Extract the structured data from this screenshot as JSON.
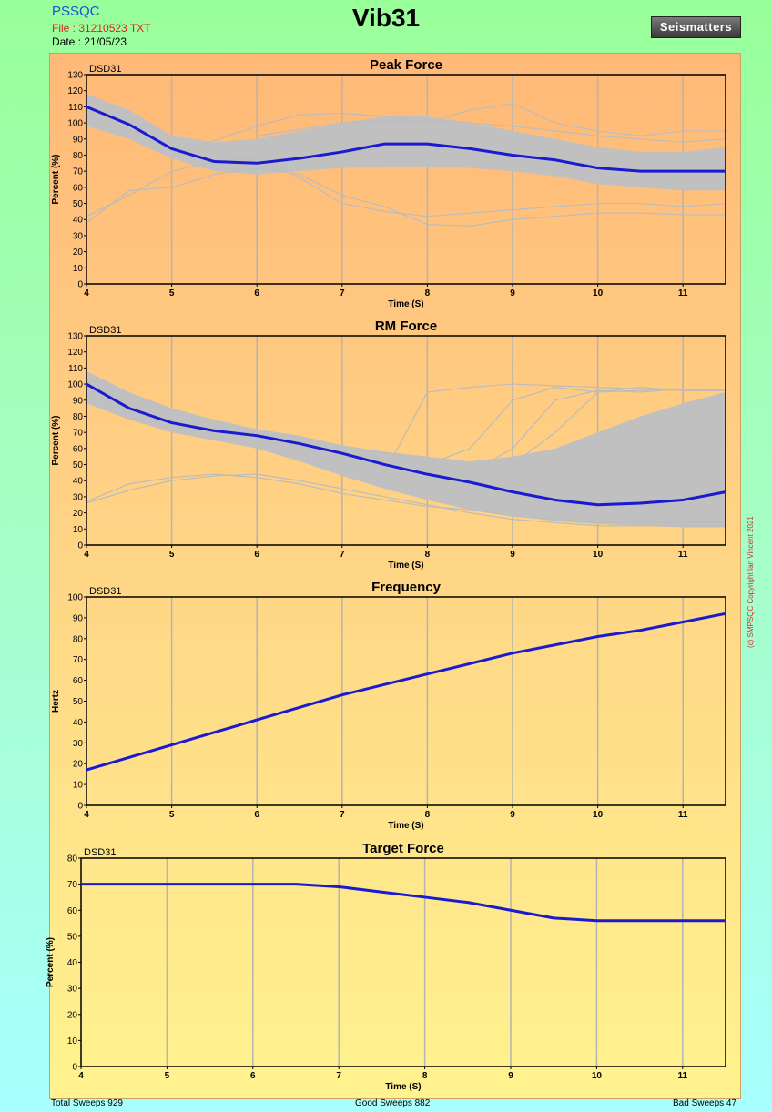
{
  "header": {
    "app_name": "PSSQC",
    "file": "File : 31210523 TXT",
    "date": "Date : 21/05/23",
    "title": "Vib31",
    "logo_text": "Seismatters"
  },
  "copyright": "(c) SMPSQC Copyright Ian Vincent 2021",
  "footer": {
    "total": "Total Sweeps 929",
    "good": "Good Sweeps 882",
    "bad": "Bad Sweeps 47"
  },
  "chart_data": [
    {
      "type": "line",
      "title": "Peak Force",
      "corner_label": "DSD31",
      "xlabel": "Time (S)",
      "ylabel": "Percent (%)",
      "xlim": [
        4,
        11.5
      ],
      "ylim": [
        0,
        130
      ],
      "xticks": [
        4,
        5,
        6,
        7,
        8,
        9,
        10,
        11
      ],
      "yticks": [
        0,
        10,
        20,
        30,
        40,
        50,
        60,
        70,
        80,
        90,
        100,
        110,
        120,
        130
      ],
      "grid": "vertical",
      "band_color": "#c0c0c0",
      "mean_color": "#1a1ad0",
      "band": {
        "x": [
          4,
          4.5,
          5,
          5.5,
          6,
          6.5,
          7,
          7.5,
          8,
          8.5,
          9,
          9.5,
          10,
          10.5,
          11,
          11.5
        ],
        "lower": [
          98,
          90,
          78,
          70,
          68,
          70,
          72,
          73,
          73,
          72,
          70,
          67,
          62,
          60,
          58,
          58
        ],
        "upper": [
          118,
          108,
          92,
          88,
          90,
          95,
          100,
          104,
          104,
          100,
          95,
          90,
          85,
          82,
          82,
          85
        ]
      },
      "spikes": [
        {
          "x": [
            4,
            4.5,
            5,
            5.5,
            6,
            6.5,
            7,
            7.5,
            8,
            8.5,
            9,
            9.5,
            10,
            10.5,
            11,
            11.5
          ],
          "y": [
            38,
            58,
            60,
            68,
            72,
            68,
            55,
            48,
            37,
            36,
            40,
            42,
            44,
            44,
            43,
            43
          ]
        },
        {
          "x": [
            4,
            4.5,
            5,
            5.5,
            6,
            6.5,
            7,
            7.5,
            8,
            8.5,
            9,
            9.5,
            10,
            10.5,
            11,
            11.5
          ],
          "y": [
            42,
            55,
            70,
            76,
            78,
            66,
            50,
            45,
            42,
            44,
            46,
            48,
            50,
            50,
            48,
            50
          ]
        },
        {
          "x": [
            5,
            6,
            6.5,
            7,
            7.5,
            8,
            8.5,
            9,
            9.5,
            10,
            10.5,
            11,
            11.5
          ],
          "y": [
            80,
            98,
            105,
            106,
            104,
            100,
            108,
            112,
            100,
            95,
            92,
            95,
            95
          ]
        },
        {
          "x": [
            6,
            7,
            8,
            9,
            10,
            11,
            11.5
          ],
          "y": [
            92,
            100,
            102,
            98,
            92,
            88,
            90
          ]
        }
      ],
      "series": [
        {
          "x": [
            4,
            4.5,
            5,
            5.5,
            6,
            6.5,
            7,
            7.5,
            8,
            8.5,
            9,
            9.5,
            10,
            10.5,
            11,
            11.5
          ],
          "values": [
            110,
            99,
            84,
            76,
            75,
            78,
            82,
            87,
            87,
            84,
            80,
            77,
            72,
            70,
            70,
            70
          ]
        }
      ]
    },
    {
      "type": "line",
      "title": "RM Force",
      "corner_label": "DSD31",
      "xlabel": "Time (S)",
      "ylabel": "Percent (%)",
      "xlim": [
        4,
        11.5
      ],
      "ylim": [
        0,
        130
      ],
      "xticks": [
        4,
        5,
        6,
        7,
        8,
        9,
        10,
        11
      ],
      "yticks": [
        0,
        10,
        20,
        30,
        40,
        50,
        60,
        70,
        80,
        90,
        100,
        110,
        120,
        130
      ],
      "grid": "vertical",
      "band_color": "#c0c0c0",
      "mean_color": "#1a1ad0",
      "band": {
        "x": [
          4,
          4.5,
          5,
          5.5,
          6,
          6.5,
          7,
          7.5,
          8,
          8.5,
          9,
          9.5,
          10,
          10.5,
          11,
          11.5
        ],
        "lower": [
          88,
          78,
          70,
          65,
          60,
          52,
          43,
          35,
          28,
          22,
          18,
          15,
          13,
          12,
          11,
          11
        ],
        "upper": [
          108,
          95,
          85,
          78,
          72,
          68,
          62,
          58,
          55,
          52,
          55,
          60,
          70,
          80,
          88,
          95
        ]
      },
      "spikes": [
        {
          "x": [
            4,
            4.5,
            5,
            5.5,
            6,
            6.5,
            7,
            7.5,
            8,
            8.5,
            9,
            9.5,
            10,
            10.5,
            11,
            11.5
          ],
          "y": [
            27,
            38,
            42,
            44,
            42,
            38,
            32,
            28,
            24,
            22,
            18,
            16,
            14,
            14,
            14,
            14
          ]
        },
        {
          "x": [
            4,
            4.5,
            5,
            5.5,
            6,
            6.5,
            7,
            7.5,
            8,
            8.5,
            9,
            9.5,
            10,
            10.5,
            11,
            11.5
          ],
          "y": [
            26,
            34,
            40,
            43,
            44,
            40,
            35,
            30,
            25,
            20,
            16,
            14,
            12,
            12,
            12,
            12
          ]
        },
        {
          "x": [
            7.5,
            8,
            8.5,
            9,
            9.5,
            10,
            10.5,
            11,
            11.5
          ],
          "y": [
            45,
            95,
            98,
            100,
            99,
            98,
            97,
            96,
            96
          ]
        },
        {
          "x": [
            8,
            8.5,
            9,
            9.5,
            10,
            10.5,
            11,
            11.5
          ],
          "y": [
            50,
            60,
            90,
            98,
            95,
            98,
            96,
            96
          ]
        },
        {
          "x": [
            8.5,
            9,
            9.5,
            10,
            10.5,
            11,
            11.5
          ],
          "y": [
            45,
            60,
            90,
            96,
            95,
            97,
            96
          ]
        },
        {
          "x": [
            9,
            9.5,
            10,
            10.5,
            11,
            11.5
          ],
          "y": [
            50,
            70,
            95,
            96,
            97,
            96
          ]
        }
      ],
      "series": [
        {
          "x": [
            4,
            4.5,
            5,
            5.5,
            6,
            6.5,
            7,
            7.5,
            8,
            8.5,
            9,
            9.5,
            10,
            10.5,
            11,
            11.5
          ],
          "values": [
            100,
            85,
            76,
            71,
            68,
            63,
            57,
            50,
            44,
            39,
            33,
            28,
            25,
            26,
            28,
            33
          ]
        }
      ]
    },
    {
      "type": "line",
      "title": "Frequency",
      "corner_label": "DSD31",
      "xlabel": "Time (S)",
      "ylabel": "Hertz",
      "xlim": [
        4,
        11.5
      ],
      "ylim": [
        0,
        100
      ],
      "xticks": [
        4,
        5,
        6,
        7,
        8,
        9,
        10,
        11
      ],
      "yticks": [
        0,
        10,
        20,
        30,
        40,
        50,
        60,
        70,
        80,
        90,
        100
      ],
      "grid": "vertical",
      "mean_color": "#1a1ad0",
      "series": [
        {
          "x": [
            4,
            5,
            6,
            7,
            8,
            9,
            10,
            10.5,
            11,
            11.5
          ],
          "values": [
            17,
            29,
            41,
            53,
            63,
            73,
            81,
            84,
            88,
            92
          ]
        }
      ]
    },
    {
      "type": "line",
      "title": "Target Force",
      "corner_label": "DSD31",
      "xlabel": "Time (S)",
      "ylabel": "Percent (%)",
      "xlim": [
        4,
        11.5
      ],
      "ylim": [
        0,
        80
      ],
      "xticks": [
        4,
        5,
        6,
        7,
        8,
        9,
        10,
        11
      ],
      "yticks": [
        0,
        10,
        20,
        30,
        40,
        50,
        60,
        70,
        80
      ],
      "grid": "vertical",
      "mean_color": "#1a1ad0",
      "series": [
        {
          "x": [
            4,
            5,
            6,
            6.5,
            7,
            7.5,
            8,
            8.5,
            9,
            9.5,
            10,
            10.5,
            11,
            11.5
          ],
          "values": [
            70,
            70,
            70,
            70,
            69,
            67,
            65,
            63,
            60,
            57,
            56,
            56,
            56,
            56
          ]
        }
      ]
    }
  ]
}
